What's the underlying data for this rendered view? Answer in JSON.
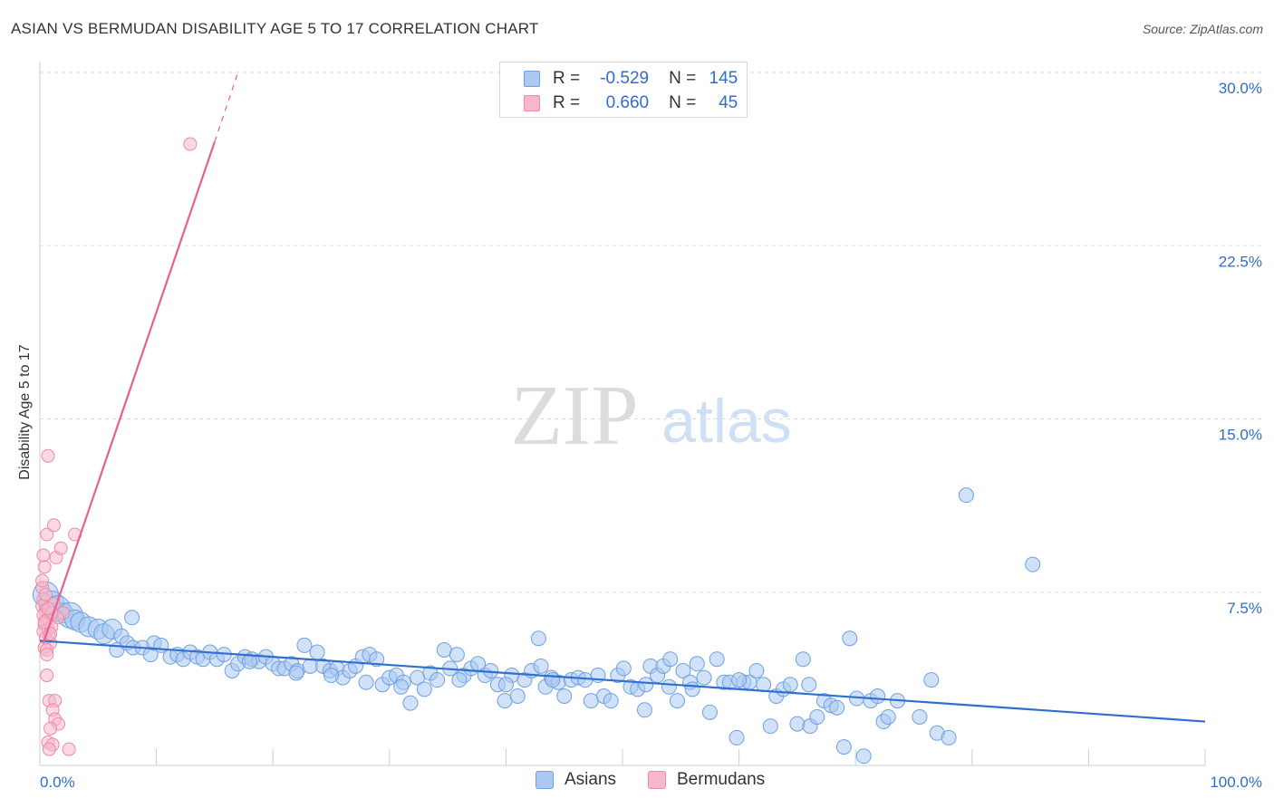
{
  "header": {
    "title": "ASIAN VS BERMUDAN DISABILITY AGE 5 TO 17 CORRELATION CHART",
    "source": "Source: ZipAtlas.com"
  },
  "watermark": {
    "zip": "ZIP",
    "atlas": "atlas"
  },
  "legend": {
    "rows": [
      {
        "series": "Asians",
        "r_label": "R =",
        "r_value": "-0.529",
        "n_label": "N =",
        "n_value": "145"
      },
      {
        "series": "Bermudans",
        "r_label": "R =",
        "r_value": "0.660",
        "n_label": "N =",
        "n_value": "45"
      }
    ]
  },
  "colors": {
    "asians_fill": "#a9c8f2",
    "asians_stroke": "#6fa1e0",
    "asians_line": "#2f6fcf",
    "bermudans_fill": "#f7b8cb",
    "bermudans_stroke": "#ec8aa8",
    "bermudans_line": "#e8608f",
    "axis_text": "#2f6fc5",
    "grid": "#dddddd"
  },
  "chart_data": {
    "type": "scatter",
    "title": "ASIAN VS BERMUDAN DISABILITY AGE 5 TO 17 CORRELATION CHART",
    "xlabel": "",
    "ylabel": "Disability Age 5 to 17",
    "xlim": [
      0,
      100
    ],
    "ylim": [
      0,
      30
    ],
    "x_tick_labels": [
      "0.0%",
      "100.0%"
    ],
    "y_ticks": [
      7.5,
      15.0,
      22.5,
      30.0
    ],
    "y_tick_labels": [
      "7.5%",
      "15.0%",
      "22.5%",
      "30.0%"
    ],
    "grid": true,
    "legend_position": "bottom-center",
    "series": [
      {
        "name": "Asians",
        "r": -0.529,
        "n": 145,
        "trendline": {
          "x": [
            0,
            100
          ],
          "y": [
            5.4,
            1.9
          ]
        },
        "points": [
          [
            0.5,
            7.4,
            3
          ],
          [
            1.0,
            7.0,
            3
          ],
          [
            1.5,
            6.8,
            3
          ],
          [
            2.0,
            6.6,
            2
          ],
          [
            2.6,
            6.5,
            3
          ],
          [
            3.0,
            6.3,
            2
          ],
          [
            3.5,
            6.2,
            2
          ],
          [
            4.2,
            6.0,
            2
          ],
          [
            5.0,
            5.9,
            2
          ],
          [
            5.5,
            5.7,
            2
          ],
          [
            6.2,
            5.9,
            2
          ],
          [
            7.0,
            5.6,
            1
          ],
          [
            6.6,
            5.0,
            1
          ],
          [
            7.5,
            5.3,
            1
          ],
          [
            8.0,
            5.1,
            1
          ],
          [
            7.9,
            6.4,
            1
          ],
          [
            8.8,
            5.1,
            1
          ],
          [
            9.5,
            4.8,
            1
          ],
          [
            9.8,
            5.3,
            1
          ],
          [
            10.4,
            5.2,
            1
          ],
          [
            11.2,
            4.7,
            1
          ],
          [
            11.8,
            4.8,
            1
          ],
          [
            12.3,
            4.6,
            1
          ],
          [
            12.9,
            4.9,
            1
          ],
          [
            13.5,
            4.7,
            1
          ],
          [
            14.0,
            4.6,
            1
          ],
          [
            14.6,
            4.9,
            1
          ],
          [
            15.2,
            4.6,
            1
          ],
          [
            15.8,
            4.8,
            1
          ],
          [
            16.5,
            4.1,
            1
          ],
          [
            17.0,
            4.4,
            1
          ],
          [
            17.6,
            4.7,
            1
          ],
          [
            18.2,
            4.6,
            1
          ],
          [
            18.8,
            4.5,
            1
          ],
          [
            19.4,
            4.7,
            1
          ],
          [
            20.0,
            4.4,
            1
          ],
          [
            20.5,
            4.2,
            1
          ],
          [
            21.0,
            4.2,
            1
          ],
          [
            21.6,
            4.4,
            1
          ],
          [
            22.1,
            4.1,
            1
          ],
          [
            22.7,
            5.2,
            1
          ],
          [
            23.2,
            4.3,
            1
          ],
          [
            23.8,
            4.9,
            1
          ],
          [
            24.3,
            4.3,
            1
          ],
          [
            24.9,
            4.1,
            1
          ],
          [
            25.5,
            4.2,
            1
          ],
          [
            26.0,
            3.8,
            1
          ],
          [
            26.6,
            4.1,
            1
          ],
          [
            27.1,
            4.3,
            1
          ],
          [
            27.7,
            4.7,
            1
          ],
          [
            28.3,
            4.8,
            1
          ],
          [
            28.9,
            4.6,
            1
          ],
          [
            29.4,
            3.5,
            1
          ],
          [
            30.0,
            3.8,
            1
          ],
          [
            30.6,
            3.9,
            1
          ],
          [
            31.2,
            3.6,
            1
          ],
          [
            31.8,
            2.7,
            1
          ],
          [
            32.4,
            3.8,
            1
          ],
          [
            33.0,
            3.3,
            1
          ],
          [
            33.5,
            4.0,
            1
          ],
          [
            34.1,
            3.7,
            1
          ],
          [
            34.7,
            5.0,
            1
          ],
          [
            35.2,
            4.2,
            1
          ],
          [
            35.8,
            4.8,
            1
          ],
          [
            36.4,
            3.9,
            1
          ],
          [
            37.0,
            4.2,
            1
          ],
          [
            37.6,
            4.4,
            1
          ],
          [
            38.2,
            3.9,
            1
          ],
          [
            38.7,
            4.1,
            1
          ],
          [
            39.3,
            3.5,
            1
          ],
          [
            39.9,
            2.8,
            1
          ],
          [
            40.5,
            3.9,
            1
          ],
          [
            41.0,
            3.0,
            1
          ],
          [
            41.6,
            3.7,
            1
          ],
          [
            42.2,
            4.1,
            1
          ],
          [
            42.8,
            5.5,
            1
          ],
          [
            43.4,
            3.4,
            1
          ],
          [
            43.9,
            3.8,
            1
          ],
          [
            44.5,
            3.6,
            1
          ],
          [
            45.0,
            3.0,
            1
          ],
          [
            45.6,
            3.7,
            1
          ],
          [
            46.2,
            3.8,
            1
          ],
          [
            46.8,
            3.7,
            1
          ],
          [
            47.3,
            2.8,
            1
          ],
          [
            47.9,
            3.9,
            1
          ],
          [
            48.4,
            3.0,
            1
          ],
          [
            49.0,
            2.8,
            1
          ],
          [
            49.6,
            3.9,
            1
          ],
          [
            50.1,
            4.2,
            1
          ],
          [
            50.7,
            3.4,
            1
          ],
          [
            51.3,
            3.3,
            1
          ],
          [
            51.9,
            2.4,
            1
          ],
          [
            52.4,
            4.3,
            1
          ],
          [
            53.0,
            3.9,
            1
          ],
          [
            53.5,
            4.3,
            1
          ],
          [
            54.1,
            4.6,
            1
          ],
          [
            54.7,
            2.8,
            1
          ],
          [
            55.2,
            4.1,
            1
          ],
          [
            55.8,
            3.6,
            1
          ],
          [
            56.4,
            4.4,
            1
          ],
          [
            57.0,
            3.8,
            1
          ],
          [
            57.5,
            2.3,
            1
          ],
          [
            58.1,
            4.6,
            1
          ],
          [
            58.7,
            3.6,
            1
          ],
          [
            59.2,
            3.6,
            1
          ],
          [
            59.8,
            1.2,
            1
          ],
          [
            60.4,
            3.6,
            1
          ],
          [
            60.9,
            3.6,
            1
          ],
          [
            61.5,
            4.1,
            1
          ],
          [
            62.1,
            3.5,
            1
          ],
          [
            62.7,
            1.7,
            1
          ],
          [
            63.2,
            3.0,
            1
          ],
          [
            63.8,
            3.3,
            1
          ],
          [
            64.4,
            3.5,
            1
          ],
          [
            65.0,
            1.8,
            1
          ],
          [
            65.5,
            4.6,
            1
          ],
          [
            66.1,
            1.7,
            1
          ],
          [
            66.7,
            2.1,
            1
          ],
          [
            67.3,
            2.8,
            1
          ],
          [
            67.9,
            2.6,
            1
          ],
          [
            68.4,
            2.5,
            1
          ],
          [
            69.0,
            0.8,
            1
          ],
          [
            69.5,
            5.5,
            1
          ],
          [
            70.1,
            2.9,
            1
          ],
          [
            70.7,
            0.4,
            1
          ],
          [
            71.3,
            2.8,
            1
          ],
          [
            71.9,
            3.0,
            1
          ],
          [
            72.4,
            1.9,
            1
          ],
          [
            72.8,
            2.1,
            1
          ],
          [
            73.6,
            2.8,
            1
          ],
          [
            75.5,
            2.1,
            1
          ],
          [
            76.5,
            3.7,
            1
          ],
          [
            77.0,
            1.4,
            1
          ],
          [
            78.0,
            1.2,
            1
          ],
          [
            79.5,
            11.7,
            1
          ],
          [
            85.2,
            8.7,
            1
          ],
          [
            43.0,
            4.3,
            1
          ],
          [
            25.0,
            3.9,
            1
          ],
          [
            18.0,
            4.5,
            1
          ],
          [
            31.0,
            3.4,
            1
          ],
          [
            36.0,
            3.7,
            1
          ],
          [
            44.0,
            3.7,
            1
          ],
          [
            52.0,
            3.5,
            1
          ],
          [
            56.0,
            3.3,
            1
          ],
          [
            60.0,
            3.7,
            1
          ],
          [
            66.0,
            3.5,
            1
          ],
          [
            54.0,
            3.4,
            1
          ],
          [
            40.0,
            3.5,
            1
          ],
          [
            28.0,
            3.6,
            1
          ],
          [
            22.0,
            4.0,
            1
          ]
        ]
      },
      {
        "name": "Bermudans",
        "r": 0.66,
        "n": 45,
        "trendline": {
          "x": [
            0.3,
            15.0
          ],
          "y": [
            5.3,
            27.0
          ],
          "dashed_extension": {
            "x": [
              15.0,
              17.0
            ],
            "y": [
              27.0,
              30.0
            ]
          }
        },
        "points": [
          [
            0.2,
            7.7
          ],
          [
            0.3,
            7.2
          ],
          [
            0.2,
            6.9
          ],
          [
            0.5,
            6.7
          ],
          [
            0.3,
            6.5
          ],
          [
            0.6,
            6.3
          ],
          [
            0.4,
            6.1
          ],
          [
            0.7,
            5.9
          ],
          [
            0.3,
            5.8
          ],
          [
            0.8,
            5.6
          ],
          [
            0.5,
            5.5
          ],
          [
            0.9,
            5.3
          ],
          [
            0.4,
            5.1
          ],
          [
            0.6,
            5.0
          ],
          [
            0.2,
            8.0
          ],
          [
            0.4,
            8.6
          ],
          [
            0.3,
            9.1
          ],
          [
            0.6,
            10.0
          ],
          [
            1.2,
            10.4
          ],
          [
            1.4,
            9.0
          ],
          [
            1.8,
            9.4
          ],
          [
            3.0,
            10.0
          ],
          [
            0.7,
            13.4
          ],
          [
            0.6,
            3.9
          ],
          [
            0.8,
            2.8
          ],
          [
            1.3,
            2.8
          ],
          [
            1.1,
            2.4
          ],
          [
            1.3,
            2.0
          ],
          [
            1.6,
            1.8
          ],
          [
            0.9,
            1.6
          ],
          [
            0.7,
            1.0
          ],
          [
            1.1,
            0.9
          ],
          [
            0.8,
            0.7
          ],
          [
            2.5,
            0.7
          ],
          [
            2.0,
            6.6
          ],
          [
            1.5,
            6.4
          ],
          [
            1.0,
            6.0
          ],
          [
            0.9,
            5.7
          ],
          [
            1.2,
            7.0
          ],
          [
            0.5,
            7.4
          ],
          [
            0.6,
            4.8
          ],
          [
            1.0,
            6.6
          ],
          [
            12.9,
            26.9
          ],
          [
            0.4,
            6.2
          ],
          [
            0.7,
            6.8
          ]
        ]
      }
    ]
  }
}
